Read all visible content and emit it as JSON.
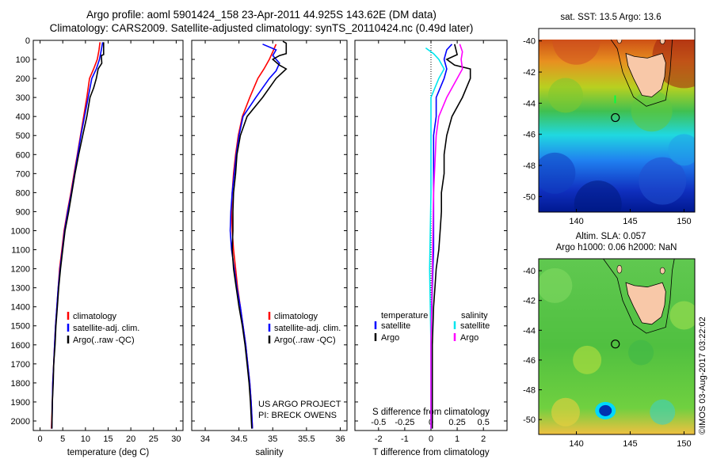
{
  "title_line1": "Argo profile: aoml 5901424_158 23-Apr-2011 44.925S 143.62E (DM data)",
  "title_line2": "Climatology: CARS2009. Satellite-adjusted climatology: synTS_20110424.nc (0.49d later)",
  "credit_line1": "US ARGO PROJECT",
  "credit_line2": "PI: BRECK OWENS",
  "imos_stamp": "©IMOS 03-Aug-2017 03:22:02",
  "colors": {
    "climatology": "#ff0000",
    "satellite": "#0000ff",
    "argo": "#000000",
    "salinity_satellite": "#00e5ee",
    "salinity_argo": "#ff00ff"
  },
  "chart_data": [
    {
      "type": "line",
      "xlabel": "temperature (deg C)",
      "xticks": [
        0,
        5,
        10,
        15,
        20,
        25,
        30
      ],
      "yticks": [
        0,
        100,
        200,
        300,
        400,
        500,
        600,
        700,
        800,
        900,
        1000,
        1100,
        1200,
        1300,
        1400,
        1500,
        1600,
        1700,
        1800,
        1900,
        2000
      ],
      "xlim": [
        -1.5,
        31.5
      ],
      "ylim": [
        2050,
        0
      ],
      "legend": [
        "climatology",
        "satellite-adj. clim.",
        "Argo(..raw -QC)"
      ],
      "series": [
        {
          "name": "climatology",
          "color": "#ff0000",
          "points": [
            [
              13.2,
              10
            ],
            [
              13.0,
              50
            ],
            [
              12.6,
              100
            ],
            [
              11.8,
              150
            ],
            [
              10.9,
              200
            ],
            [
              10.3,
              300
            ],
            [
              9.6,
              400
            ],
            [
              8.9,
              500
            ],
            [
              8.2,
              600
            ],
            [
              7.5,
              700
            ],
            [
              6.8,
              800
            ],
            [
              6.0,
              900
            ],
            [
              5.3,
              1000
            ],
            [
              4.8,
              1100
            ],
            [
              4.3,
              1200
            ],
            [
              4.0,
              1300
            ],
            [
              3.7,
              1400
            ],
            [
              3.4,
              1500
            ],
            [
              3.2,
              1600
            ],
            [
              3.0,
              1700
            ],
            [
              2.8,
              1800
            ],
            [
              2.7,
              1900
            ],
            [
              2.5,
              2040
            ]
          ]
        },
        {
          "name": "satellite-adj. clim.",
          "color": "#0000ff",
          "points": [
            [
              13.8,
              10
            ],
            [
              13.5,
              50
            ],
            [
              13.1,
              100
            ],
            [
              12.4,
              150
            ],
            [
              11.4,
              200
            ],
            [
              10.6,
              300
            ],
            [
              9.8,
              400
            ],
            [
              9.0,
              500
            ],
            [
              8.3,
              600
            ],
            [
              7.6,
              700
            ],
            [
              6.9,
              800
            ],
            [
              6.1,
              900
            ],
            [
              5.4,
              1000
            ],
            [
              4.9,
              1100
            ],
            [
              4.4,
              1200
            ],
            [
              4.0,
              1300
            ],
            [
              3.7,
              1400
            ],
            [
              3.4,
              1500
            ],
            [
              3.2,
              1600
            ],
            [
              3.0,
              1700
            ],
            [
              2.8,
              1800
            ],
            [
              2.7,
              1900
            ],
            [
              2.6,
              2040
            ]
          ]
        },
        {
          "name": "Argo(..raw -QC)",
          "color": "#000000",
          "points": [
            [
              14.0,
              10
            ],
            [
              14.0,
              75
            ],
            [
              13.5,
              80
            ],
            [
              13.6,
              120
            ],
            [
              12.8,
              150
            ],
            [
              12.4,
              200
            ],
            [
              11.8,
              250
            ],
            [
              11.0,
              300
            ],
            [
              10.3,
              400
            ],
            [
              9.4,
              500
            ],
            [
              8.5,
              600
            ],
            [
              7.7,
              700
            ],
            [
              7.0,
              800
            ],
            [
              6.3,
              900
            ],
            [
              5.5,
              1000
            ],
            [
              5.0,
              1100
            ],
            [
              4.5,
              1200
            ],
            [
              4.1,
              1300
            ],
            [
              3.8,
              1400
            ],
            [
              3.5,
              1500
            ],
            [
              3.3,
              1600
            ],
            [
              3.0,
              1700
            ],
            [
              2.9,
              1800
            ],
            [
              2.7,
              1900
            ],
            [
              2.6,
              2040
            ]
          ]
        }
      ]
    },
    {
      "type": "line",
      "xlabel": "salinity",
      "xticks": [
        34,
        34.5,
        35,
        35.5,
        36
      ],
      "xlim": [
        33.8,
        36.1
      ],
      "ylim": [
        2050,
        0
      ],
      "legend": [
        "climatology",
        "satellite-adj. clim.",
        "Argo(..raw -QC)"
      ],
      "series": [
        {
          "name": "climatology",
          "color": "#ff0000",
          "points": [
            [
              35.05,
              20
            ],
            [
              35.0,
              60
            ],
            [
              34.95,
              100
            ],
            [
              34.87,
              150
            ],
            [
              34.78,
              200
            ],
            [
              34.66,
              300
            ],
            [
              34.55,
              400
            ],
            [
              34.49,
              500
            ],
            [
              34.45,
              600
            ],
            [
              34.42,
              700
            ],
            [
              34.4,
              800
            ],
            [
              34.39,
              900
            ],
            [
              34.4,
              1000
            ],
            [
              34.42,
              1100
            ],
            [
              34.45,
              1200
            ],
            [
              34.48,
              1300
            ],
            [
              34.52,
              1400
            ],
            [
              34.56,
              1500
            ],
            [
              34.6,
              1600
            ],
            [
              34.63,
              1700
            ],
            [
              34.66,
              1800
            ],
            [
              34.68,
              1900
            ],
            [
              34.7,
              2040
            ]
          ]
        },
        {
          "name": "satellite-adj. clim.",
          "color": "#0000ff",
          "points": [
            [
              34.85,
              20
            ],
            [
              35.05,
              50
            ],
            [
              35.0,
              80
            ],
            [
              35.1,
              120
            ],
            [
              35.05,
              160
            ],
            [
              34.95,
              200
            ],
            [
              34.75,
              300
            ],
            [
              34.56,
              400
            ],
            [
              34.5,
              500
            ],
            [
              34.46,
              600
            ],
            [
              34.43,
              700
            ],
            [
              34.4,
              800
            ],
            [
              34.38,
              900
            ],
            [
              34.37,
              1000
            ],
            [
              34.39,
              1100
            ],
            [
              34.43,
              1200
            ],
            [
              34.47,
              1300
            ],
            [
              34.52,
              1400
            ],
            [
              34.56,
              1500
            ],
            [
              34.6,
              1600
            ],
            [
              34.63,
              1700
            ],
            [
              34.66,
              1800
            ],
            [
              34.68,
              1900
            ],
            [
              34.7,
              2040
            ]
          ]
        },
        {
          "name": "Argo(..raw -QC)",
          "color": "#000000",
          "points": [
            [
              35.15,
              5
            ],
            [
              35.2,
              15
            ],
            [
              35.2,
              70
            ],
            [
              35.1,
              80
            ],
            [
              35.0,
              100
            ],
            [
              35.1,
              130
            ],
            [
              35.2,
              150
            ],
            [
              35.05,
              200
            ],
            [
              34.85,
              300
            ],
            [
              34.62,
              400
            ],
            [
              34.52,
              500
            ],
            [
              34.47,
              600
            ],
            [
              34.45,
              700
            ],
            [
              34.42,
              800
            ],
            [
              34.41,
              900
            ],
            [
              34.41,
              1000
            ],
            [
              34.4,
              1100
            ],
            [
              34.42,
              1200
            ],
            [
              34.46,
              1300
            ],
            [
              34.5,
              1400
            ],
            [
              34.55,
              1500
            ],
            [
              34.59,
              1600
            ],
            [
              34.62,
              1700
            ],
            [
              34.65,
              1800
            ],
            [
              34.67,
              1900
            ],
            [
              34.69,
              2040
            ]
          ]
        }
      ]
    },
    {
      "type": "line",
      "xlabel": "T difference from climatology",
      "top_axis_label": "S difference from climatology",
      "xticks": [
        -2,
        -1,
        0,
        1,
        2
      ],
      "top_ticks": [
        -0.5,
        -0.25,
        0,
        0.25,
        0.5
      ],
      "xlim": [
        -2.9,
        2.9
      ],
      "ylim": [
        2050,
        0
      ],
      "legend_headers": [
        "temperature",
        "salinity"
      ],
      "legend": [
        "satellite",
        "Argo",
        "satellite",
        "Argo"
      ],
      "series": [
        {
          "name": "satellite",
          "group": "temperature",
          "color": "#0000ff",
          "points": [
            [
              0.8,
              20
            ],
            [
              0.6,
              50
            ],
            [
              0.5,
              100
            ],
            [
              0.6,
              150
            ],
            [
              0.5,
              200
            ],
            [
              0.2,
              300
            ],
            [
              0.2,
              400
            ],
            [
              0.1,
              500
            ],
            [
              0.1,
              700
            ],
            [
              0.1,
              900
            ],
            [
              0.1,
              1100
            ],
            [
              0.05,
              1300
            ],
            [
              0.0,
              1600
            ],
            [
              0.0,
              2040
            ]
          ]
        },
        {
          "name": "Argo",
          "group": "temperature",
          "color": "#000000",
          "points": [
            [
              0.9,
              20
            ],
            [
              1.0,
              75
            ],
            [
              0.6,
              100
            ],
            [
              0.9,
              130
            ],
            [
              1.5,
              150
            ],
            [
              1.5,
              200
            ],
            [
              1.2,
              300
            ],
            [
              0.8,
              400
            ],
            [
              0.6,
              500
            ],
            [
              0.5,
              600
            ],
            [
              0.5,
              700
            ],
            [
              0.4,
              800
            ],
            [
              0.4,
              900
            ],
            [
              0.35,
              1000
            ],
            [
              0.3,
              1100
            ],
            [
              0.2,
              1200
            ],
            [
              0.15,
              1300
            ],
            [
              0.1,
              1400
            ],
            [
              0.05,
              1600
            ],
            [
              0.05,
              1800
            ],
            [
              0.05,
              2040
            ]
          ]
        },
        {
          "name": "satellite",
          "group": "salinity",
          "color": "#00e5ee",
          "points": [
            [
              -0.2,
              40
            ],
            [
              0.1,
              70
            ],
            [
              0.3,
              100
            ],
            [
              0.5,
              150
            ],
            [
              0.3,
              200
            ],
            [
              0.0,
              300
            ],
            [
              0.0,
              500
            ],
            [
              0.0,
              800
            ],
            [
              -0.05,
              1200
            ],
            [
              0.0,
              1600
            ],
            [
              0.0,
              2040
            ]
          ]
        },
        {
          "name": "Argo",
          "group": "salinity",
          "color": "#ff00ff",
          "points": [
            [
              1.1,
              20
            ],
            [
              1.2,
              60
            ],
            [
              1.15,
              100
            ],
            [
              1.2,
              150
            ],
            [
              1.0,
              200
            ],
            [
              0.6,
              300
            ],
            [
              0.3,
              400
            ],
            [
              0.2,
              500
            ],
            [
              0.1,
              800
            ],
            [
              0.05,
              1200
            ],
            [
              0.0,
              1600
            ],
            [
              0.0,
              2040
            ]
          ]
        }
      ]
    },
    {
      "type": "heatmap",
      "panel_title": "sat. SST: 13.5 Argo: 13.6",
      "xticks": [
        140,
        145,
        150
      ],
      "yticks": [
        -40,
        -42,
        -44,
        -46,
        -48,
        -50
      ],
      "xlim": [
        136.5,
        151
      ],
      "ylim": [
        -51,
        -39.2
      ],
      "float_position": [
        143.62,
        -44.925
      ]
    },
    {
      "type": "heatmap",
      "panel_title": "Altim. SLA: 0.057",
      "panel_subtitle": "Argo h1000: 0.06 h2000: NaN",
      "xticks": [
        140,
        145,
        150
      ],
      "yticks": [
        -40,
        -42,
        -44,
        -46,
        -48,
        -50
      ],
      "xlim": [
        136.5,
        151
      ],
      "ylim": [
        -51,
        -39.2
      ],
      "float_position": [
        143.62,
        -44.925
      ]
    }
  ]
}
